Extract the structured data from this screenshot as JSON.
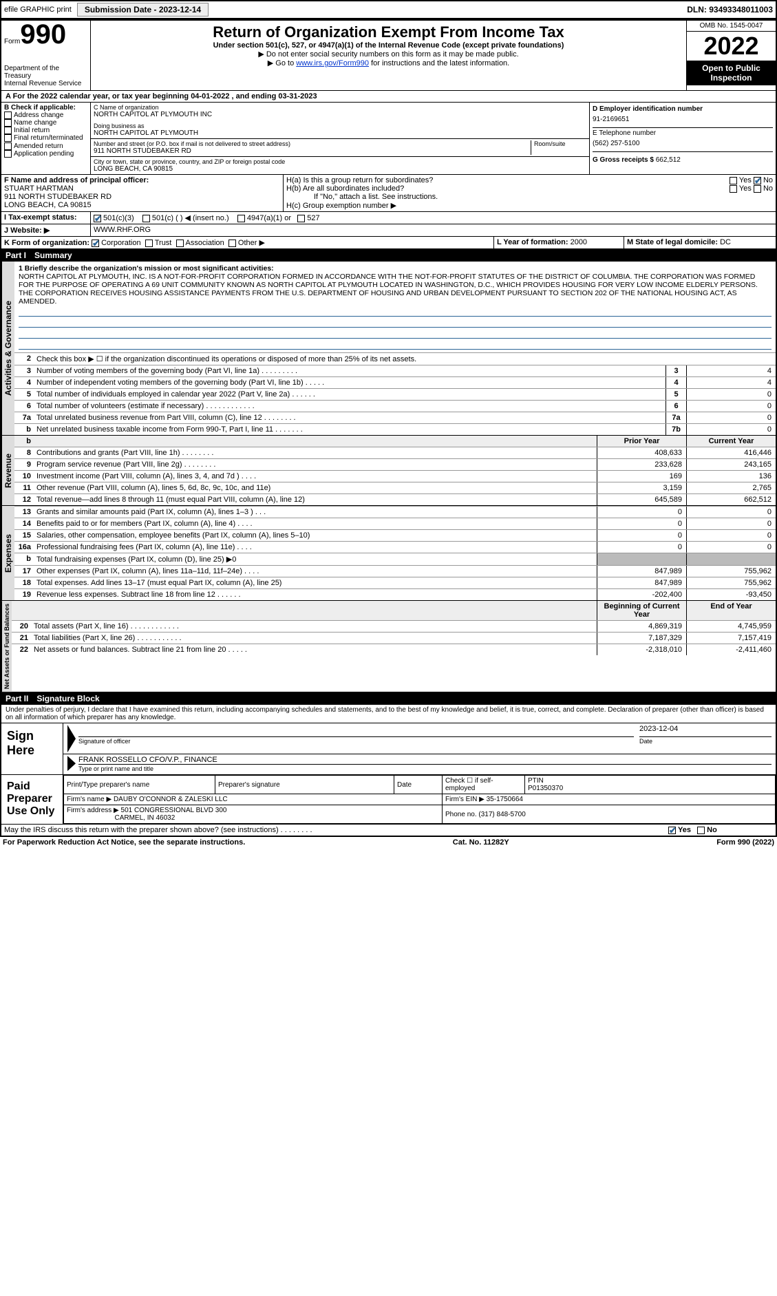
{
  "top": {
    "efile": "efile GRAPHIC print",
    "submission": "Submission Date - 2023-12-14",
    "dln": "DLN: 93493348011003"
  },
  "header": {
    "form_word": "Form",
    "form_num": "990",
    "title": "Return of Organization Exempt From Income Tax",
    "sub1": "Under section 501(c), 527, or 4947(a)(1) of the Internal Revenue Code (except private foundations)",
    "sub2": "▶ Do not enter social security numbers on this form as it may be made public.",
    "sub3_pre": "▶ Go to ",
    "sub3_link": "www.irs.gov/Form990",
    "sub3_post": " for instructions and the latest information.",
    "omb": "OMB No. 1545-0047",
    "year": "2022",
    "open": "Open to Public Inspection",
    "dept": "Department of the Treasury",
    "irs": "Internal Revenue Service"
  },
  "periodA": "A For the 2022 calendar year, or tax year beginning 04-01-2022   , and ending 03-31-2023",
  "boxB": {
    "hdr": "B Check if applicable:",
    "items": [
      "Address change",
      "Name change",
      "Initial return",
      "Final return/terminated",
      "Amended return",
      "Application pending"
    ]
  },
  "boxC": {
    "label_name": "C Name of organization",
    "name": "NORTH CAPITOL AT PLYMOUTH INC",
    "dba_label": "Doing business as",
    "dba": "NORTH CAPITOL AT PLYMOUTH",
    "addr_label": "Number and street (or P.O. box if mail is not delivered to street address)",
    "addr": "911 NORTH STUDEBAKER RD",
    "room_label": "Room/suite",
    "city_label": "City or town, state or province, country, and ZIP or foreign postal code",
    "city": "LONG BEACH, CA  90815"
  },
  "boxD": {
    "label": "D Employer identification number",
    "val": "91-2169651"
  },
  "boxE": {
    "label": "E Telephone number",
    "val": "(562) 257-5100"
  },
  "boxG": {
    "label": "G Gross receipts $",
    "val": "662,512"
  },
  "boxF": {
    "label": "F  Name and address of principal officer:",
    "name": "STUART HARTMAN",
    "addr1": "911 NORTH STUDEBAKER RD",
    "addr2": "LONG BEACH, CA  90815"
  },
  "boxH": {
    "a": "H(a)  Is this a group return for subordinates?",
    "b": "H(b)  Are all subordinates included?",
    "b_note": "If \"No,\" attach a list. See instructions.",
    "c": "H(c)  Group exemption number ▶",
    "yes": "Yes",
    "no": "No"
  },
  "boxI": {
    "label": "I   Tax-exempt status:",
    "opts": [
      "501(c)(3)",
      "501(c) (   ) ◀ (insert no.)",
      "4947(a)(1) or",
      "527"
    ]
  },
  "boxJ": {
    "label": "J   Website: ▶",
    "val": "WWW.RHF.ORG"
  },
  "boxK": {
    "label": "K Form of organization:",
    "opts": [
      "Corporation",
      "Trust",
      "Association",
      "Other ▶"
    ]
  },
  "boxL": {
    "label": "L Year of formation:",
    "val": "2000"
  },
  "boxM": {
    "label": "M State of legal domicile:",
    "val": "DC"
  },
  "part1": {
    "num": "Part I",
    "title": "Summary"
  },
  "mission": {
    "q": "1   Briefly describe the organization's mission or most significant activities:",
    "text": "NORTH CAPITOL AT PLYMOUTH, INC. IS A NOT-FOR-PROFIT CORPORATION FORMED IN ACCORDANCE WITH THE NOT-FOR-PROFIT STATUTES OF THE DISTRICT OF COLUMBIA. THE CORPORATION WAS FORMED FOR THE PURPOSE OF OPERATING A 69 UNIT COMMUNITY KNOWN AS NORTH CAPITOL AT PLYMOUTH LOCATED IN WASHINGTON, D.C., WHICH PROVIDES HOUSING FOR VERY LOW INCOME ELDERLY PERSONS. THE CORPORATION RECEIVES HOUSING ASSISTANCE PAYMENTS FROM THE U.S. DEPARTMENT OF HOUSING AND URBAN DEVELOPMENT PURSUANT TO SECTION 202 OF THE NATIONAL HOUSING ACT, AS AMENDED."
  },
  "gov_lines": [
    {
      "n": "2",
      "t": "Check this box ▶ ☐ if the organization discontinued its operations or disposed of more than 25% of its net assets."
    },
    {
      "n": "3",
      "t": "Number of voting members of the governing body (Part VI, line 1a)  .    .    .    .    .    .    .    .    .",
      "box": "3",
      "v": "4"
    },
    {
      "n": "4",
      "t": "Number of independent voting members of the governing body (Part VI, line 1b)  .    .    .    .    .",
      "box": "4",
      "v": "4"
    },
    {
      "n": "5",
      "t": "Total number of individuals employed in calendar year 2022 (Part V, line 2a)  .    .    .    .    .    .",
      "box": "5",
      "v": "0"
    },
    {
      "n": "6",
      "t": "Total number of volunteers (estimate if necessary)  .    .    .    .    .    .    .    .    .    .    .    .",
      "box": "6",
      "v": "0"
    },
    {
      "n": "7a",
      "t": "Total unrelated business revenue from Part VIII, column (C), line 12  .    .    .    .    .    .    .    .",
      "box": "7a",
      "v": "0"
    },
    {
      "n": "b",
      "t": "Net unrelated business taxable income from Form 990-T, Part I, line 11  .    .    .    .    .    .    .",
      "box": "7b",
      "v": "0"
    }
  ],
  "cols": {
    "prior": "Prior Year",
    "current": "Current Year",
    "begin": "Beginning of Current Year",
    "end": "End of Year"
  },
  "rev_lines": [
    {
      "n": "8",
      "t": "Contributions and grants (Part VIII, line 1h)  .    .    .    .    .    .    .    .",
      "p": "408,633",
      "c": "416,446"
    },
    {
      "n": "9",
      "t": "Program service revenue (Part VIII, line 2g)  .    .    .    .    .    .    .    .",
      "p": "233,628",
      "c": "243,165"
    },
    {
      "n": "10",
      "t": "Investment income (Part VIII, column (A), lines 3, 4, and 7d )  .    .    .    .",
      "p": "169",
      "c": "136"
    },
    {
      "n": "11",
      "t": "Other revenue (Part VIII, column (A), lines 5, 6d, 8c, 9c, 10c, and 11e)",
      "p": "3,159",
      "c": "2,765"
    },
    {
      "n": "12",
      "t": "Total revenue—add lines 8 through 11 (must equal Part VIII, column (A), line 12)",
      "p": "645,589",
      "c": "662,512"
    }
  ],
  "exp_lines": [
    {
      "n": "13",
      "t": "Grants and similar amounts paid (Part IX, column (A), lines 1–3 )  .    .    .",
      "p": "0",
      "c": "0"
    },
    {
      "n": "14",
      "t": "Benefits paid to or for members (Part IX, column (A), line 4)  .    .    .    .",
      "p": "0",
      "c": "0"
    },
    {
      "n": "15",
      "t": "Salaries, other compensation, employee benefits (Part IX, column (A), lines 5–10)",
      "p": "0",
      "c": "0"
    },
    {
      "n": "16a",
      "t": "Professional fundraising fees (Part IX, column (A), line 11e)  .    .    .    .",
      "p": "0",
      "c": "0"
    },
    {
      "n": "b",
      "t": "Total fundraising expenses (Part IX, column (D), line 25) ▶0",
      "p": "shade",
      "c": "shade"
    },
    {
      "n": "17",
      "t": "Other expenses (Part IX, column (A), lines 11a–11d, 11f–24e)  .    .    .    .",
      "p": "847,989",
      "c": "755,962"
    },
    {
      "n": "18",
      "t": "Total expenses. Add lines 13–17 (must equal Part IX, column (A), line 25)",
      "p": "847,989",
      "c": "755,962"
    },
    {
      "n": "19",
      "t": "Revenue less expenses. Subtract line 18 from line 12  .    .    .    .    .    .",
      "p": "-202,400",
      "c": "-93,450"
    }
  ],
  "net_lines": [
    {
      "n": "20",
      "t": "Total assets (Part X, line 16)  .    .    .    .    .    .    .    .    .    .    .    .",
      "p": "4,869,319",
      "c": "4,745,959"
    },
    {
      "n": "21",
      "t": "Total liabilities (Part X, line 26)  .    .    .    .    .    .    .    .    .    .    .",
      "p": "7,187,329",
      "c": "7,157,419"
    },
    {
      "n": "22",
      "t": "Net assets or fund balances. Subtract line 21 from line 20  .    .    .    .    .",
      "p": "-2,318,010",
      "c": "-2,411,460"
    }
  ],
  "side_labels": {
    "gov": "Activities & Governance",
    "rev": "Revenue",
    "exp": "Expenses",
    "net": "Net Assets or Fund Balances"
  },
  "part2": {
    "num": "Part II",
    "title": "Signature Block"
  },
  "sig_decl": "Under penalties of perjury, I declare that I have examined this return, including accompanying schedules and statements, and to the best of my knowledge and belief, it is true, correct, and complete. Declaration of preparer (other than officer) is based on all information of which preparer has any knowledge.",
  "sign": {
    "here": "Sign Here",
    "sig_of": "Signature of officer",
    "date_label": "Date",
    "date": "2023-12-04",
    "name": "FRANK ROSSELLO CFO/V.P., FINANCE",
    "name_label": "Type or print name and title"
  },
  "paid": {
    "label": "Paid Preparer Use Only",
    "h1": "Print/Type preparer's name",
    "h2": "Preparer's signature",
    "h3": "Date",
    "h4": "Check ☐ if self-employed",
    "h5": "PTIN",
    "ptin": "P01350370",
    "firm_label": "Firm's name    ▶",
    "firm": "DAUBY O'CONNOR & ZALESKI LLC",
    "ein_label": "Firm's EIN ▶",
    "ein": "35-1750664",
    "addr_label": "Firm's address ▶",
    "addr1": "501 CONGRESSIONAL BLVD 300",
    "addr2": "CARMEL, IN  46032",
    "phone_label": "Phone no.",
    "phone": "(317) 848-5700"
  },
  "discuss": {
    "q": "May the IRS discuss this return with the preparer shown above? (see instructions)   .    .    .    .    .    .    .    .",
    "yes": "Yes",
    "no": "No"
  },
  "footer": {
    "left": "For Paperwork Reduction Act Notice, see the separate instructions.",
    "mid": "Cat. No. 11282Y",
    "right": "Form 990 (2022)"
  }
}
